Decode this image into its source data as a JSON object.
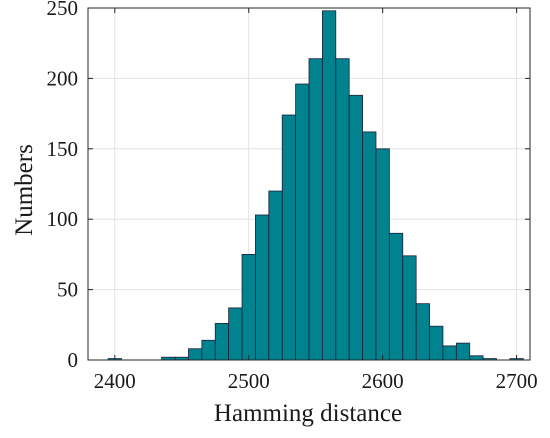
{
  "chart_data": {
    "type": "bar",
    "subtype": "histogram",
    "xlabel": "Hamming distance",
    "ylabel": "Numbers",
    "xlim": [
      2380,
      2710
    ],
    "ylim": [
      0,
      250
    ],
    "xticks": [
      2400,
      2500,
      2600,
      2700
    ],
    "yticks": [
      0,
      50,
      100,
      150,
      200,
      250
    ],
    "grid": true,
    "bar_color": "#00838f",
    "bar_edge_color": "#1f1f3a",
    "bin_width": 10,
    "bins": [
      {
        "start": 2395,
        "end": 2405,
        "count": 1
      },
      {
        "start": 2405,
        "end": 2415,
        "count": 0
      },
      {
        "start": 2415,
        "end": 2425,
        "count": 0
      },
      {
        "start": 2425,
        "end": 2435,
        "count": 0
      },
      {
        "start": 2435,
        "end": 2445,
        "count": 2
      },
      {
        "start": 2445,
        "end": 2455,
        "count": 2
      },
      {
        "start": 2455,
        "end": 2465,
        "count": 8
      },
      {
        "start": 2465,
        "end": 2475,
        "count": 14
      },
      {
        "start": 2475,
        "end": 2485,
        "count": 26
      },
      {
        "start": 2485,
        "end": 2495,
        "count": 37
      },
      {
        "start": 2495,
        "end": 2505,
        "count": 75
      },
      {
        "start": 2505,
        "end": 2515,
        "count": 103
      },
      {
        "start": 2515,
        "end": 2525,
        "count": 120
      },
      {
        "start": 2525,
        "end": 2535,
        "count": 174
      },
      {
        "start": 2535,
        "end": 2545,
        "count": 196
      },
      {
        "start": 2545,
        "end": 2555,
        "count": 214
      },
      {
        "start": 2555,
        "end": 2565,
        "count": 248
      },
      {
        "start": 2565,
        "end": 2575,
        "count": 214
      },
      {
        "start": 2575,
        "end": 2585,
        "count": 188
      },
      {
        "start": 2585,
        "end": 2595,
        "count": 162
      },
      {
        "start": 2595,
        "end": 2605,
        "count": 150
      },
      {
        "start": 2605,
        "end": 2615,
        "count": 90
      },
      {
        "start": 2615,
        "end": 2625,
        "count": 74
      },
      {
        "start": 2625,
        "end": 2635,
        "count": 40
      },
      {
        "start": 2635,
        "end": 2645,
        "count": 24
      },
      {
        "start": 2645,
        "end": 2655,
        "count": 10
      },
      {
        "start": 2655,
        "end": 2665,
        "count": 12
      },
      {
        "start": 2665,
        "end": 2675,
        "count": 3
      },
      {
        "start": 2675,
        "end": 2685,
        "count": 1
      },
      {
        "start": 2685,
        "end": 2695,
        "count": 0
      },
      {
        "start": 2695,
        "end": 2705,
        "count": 1
      }
    ]
  }
}
